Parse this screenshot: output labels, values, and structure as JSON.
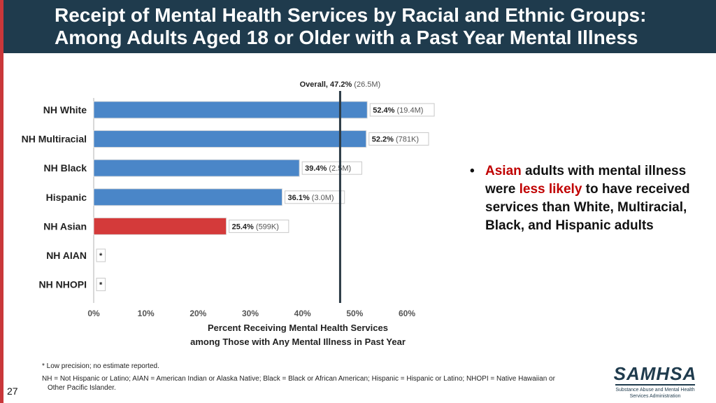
{
  "title": {
    "line1": "Receipt of Mental Health Services by Racial and Ethnic Groups:",
    "line2": "Among Adults Aged 18 or Older with a Past Year Mental Illness"
  },
  "chart_data": {
    "type": "bar",
    "orientation": "horizontal",
    "categories": [
      "NH White",
      "NH Multiracial",
      "NH Black",
      "Hispanic",
      "NH Asian",
      "NH AIAN",
      "NH NHOPI"
    ],
    "values": [
      52.4,
      52.2,
      39.4,
      36.1,
      25.4,
      null,
      null
    ],
    "value_labels": [
      "52.4%",
      "52.2%",
      "39.4%",
      "36.1%",
      "25.4%",
      "*",
      "*"
    ],
    "count_labels": [
      "(19.4M)",
      "(781K)",
      "(2.5M)",
      "(3.0M)",
      "(599K)",
      "",
      ""
    ],
    "highlight_category": "NH Asian",
    "colors": {
      "default": "#4a86c8",
      "highlight": "#d43a3a",
      "reference": "#2b3a45"
    },
    "reference_line": {
      "value": 47.2,
      "label_main": "Overall, 47.2%",
      "label_sub": "(26.5M)"
    },
    "xlim": [
      0,
      60
    ],
    "ticks": [
      0,
      10,
      20,
      30,
      40,
      50,
      60
    ],
    "tick_labels": [
      "0%",
      "10%",
      "20%",
      "30%",
      "40%",
      "50%",
      "60%"
    ],
    "xlabel_line1": "Percent Receiving Mental Health Services",
    "xlabel_line2": "among Those with Any Mental Illness in Past Year"
  },
  "bullet": {
    "marker": "•",
    "highlight1": "Asian",
    "text1": " adults with mental illness were ",
    "highlight2": "less likely",
    "text2": " to have received services than White, Multiracial, Black, and Hispanic adults"
  },
  "footnotes": {
    "note1": "* Low precision; no estimate reported.",
    "note2_line1": "NH = Not Hispanic or Latino; AIAN = American Indian or Alaska Native; Black = Black or African American; Hispanic = Hispanic or Latino; NHOPI = Native Hawaiian or",
    "note2_line2": "Other Pacific Islander."
  },
  "page_number": "27",
  "logo": {
    "word": "SAMHSA",
    "sub1": "Substance Abuse and Mental Health",
    "sub2": "Services Administration"
  }
}
